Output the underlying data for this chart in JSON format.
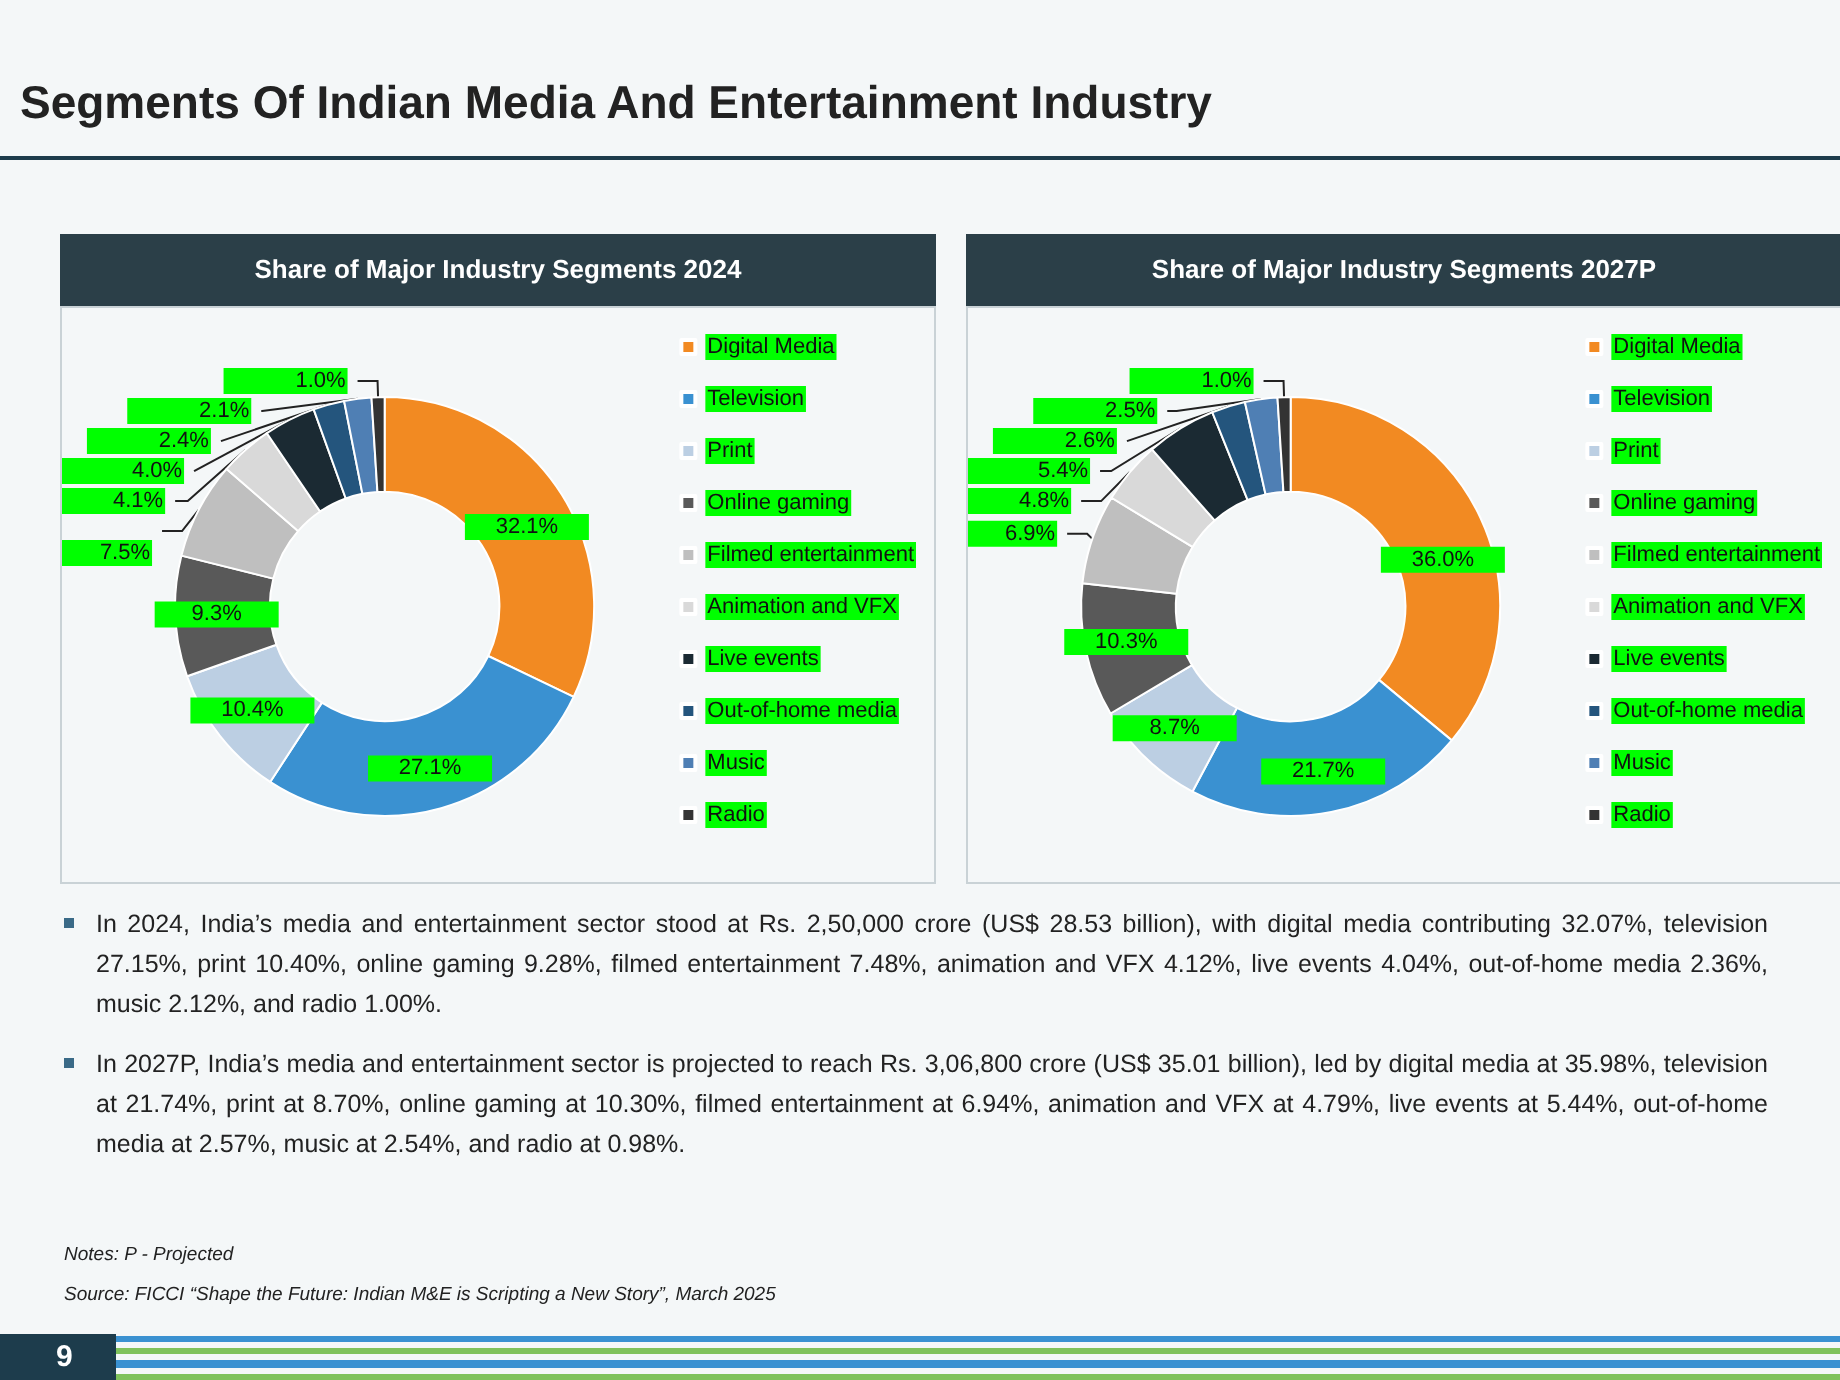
{
  "chart_data": [
    {
      "type": "donut",
      "title": "Share of Major Industry Segments 2024",
      "annotations": [
        "Segments Of Indian Media And Entertainment Industry"
      ],
      "categories": [
        "Digital Media",
        "Television",
        "Print",
        "Online gaming",
        "Filmed entertainment",
        "Animation and VFX",
        "Live events",
        "Out-of-home media",
        "Music",
        "Radio"
      ],
      "values": [
        32.1,
        27.1,
        10.4,
        9.3,
        7.5,
        4.1,
        4.0,
        2.4,
        2.1,
        1.0
      ],
      "value_labels": [
        "32.1%",
        "27.1%",
        "10.4%",
        "9.3%",
        "7.5%",
        "4.1%",
        "4.0%",
        "2.4%",
        "2.1%",
        "1.0%"
      ],
      "colors": [
        "#f28a22",
        "#3a91d1",
        "#bccfe3",
        "#595959",
        "#bfbfbf",
        "#d9d9d9",
        "#1b2a33",
        "#24557d",
        "#4f7fb4",
        "#333333"
      ],
      "legend": "right"
    },
    {
      "type": "donut",
      "title": "Share of Major Industry Segments 2027P",
      "annotations": [
        "In 2024, India’s media and entertainment sector stood at Rs. 2,50,000 crore (US$ 28.53 billion), with digital media contributing 32.07%, television 27.15%, print 10.40%, online gaming 9.28%, filmed entertainment 7.48%, animation and VFX 4.12%, live events 4.04%, out-of-home media 2.36%, music 2.12%, and radio 1.00%.",
        "In 2027P, India’s media and entertainment sector is projected to reach Rs. 3,06,800 crore (US$ 35.01 billion), led by digital media at 35.98%, television at 21.74%, print at 8.70%, online gaming at 10.30%, filmed entertainment at 6.94%, animation and VFX at 4.79%, live events at 5.44%, out-of-home media at 2.57%, music at 2.54%, and radio at 0.98%.",
        "Notes: P - Projected",
        "Source: FICCI “Shape the Future: Indian M&E is Scripting a New Story”, March 2025",
        "9"
      ],
      "categories": [
        "Digital Media",
        "Television",
        "Print",
        "Online gaming",
        "Filmed entertainment",
        "Animation and VFX",
        "Live events",
        "Out-of-home media",
        "Music",
        "Radio"
      ],
      "values": [
        36.0,
        21.7,
        8.7,
        10.3,
        6.9,
        4.8,
        5.4,
        2.6,
        2.5,
        1.0
      ],
      "value_labels": [
        "36.0%",
        "21.7%",
        "8.7%",
        "10.3%",
        "6.9%",
        "4.8%",
        "5.4%",
        "2.6%",
        "2.5%",
        "1.0%"
      ],
      "colors": [
        "#f28a22",
        "#3a91d1",
        "#bccfe3",
        "#595959",
        "#bfbfbf",
        "#d9d9d9",
        "#1b2a33",
        "#24557d",
        "#4f7fb4",
        "#333333"
      ],
      "legend": "right"
    }
  ]
}
